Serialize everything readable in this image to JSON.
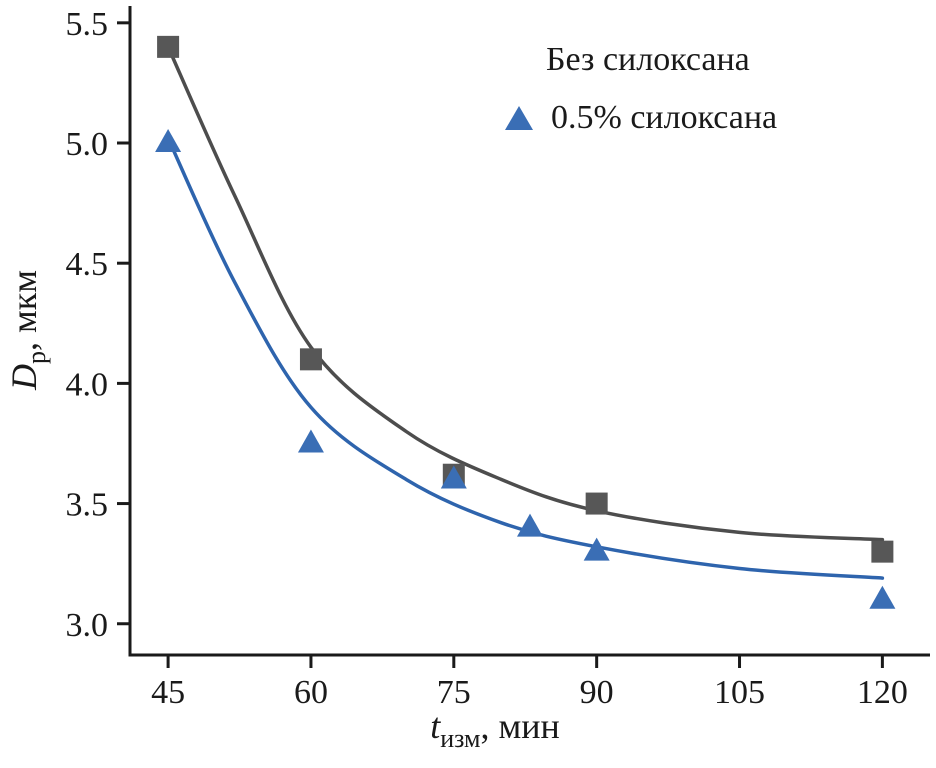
{
  "chart_data": {
    "type": "scatter",
    "title": "",
    "xlabel": "t_изм, мин",
    "ylabel": "D_p, мкм",
    "xlabel_parts": {
      "symbol": "t",
      "subscript": "изм",
      "rest": ", мин"
    },
    "ylabel_parts": {
      "symbol": "D",
      "subscript": "p",
      "rest": ", мкм"
    },
    "xlim": [
      41,
      125
    ],
    "ylim": [
      2.87,
      5.57
    ],
    "xticks": [
      "45",
      "60",
      "75",
      "90",
      "105",
      "120"
    ],
    "yticks": [
      "3.0",
      "3.5",
      "4.0",
      "4.5",
      "5.0",
      "5.5"
    ],
    "xtick_values": [
      45,
      60,
      75,
      90,
      105,
      120
    ],
    "ytick_values": [
      3.0,
      3.5,
      4.0,
      4.5,
      5.0,
      5.5
    ],
    "grid": false,
    "legend_position": "top-right",
    "axis_color": "#1a1a1a",
    "series": [
      {
        "name": "Без силоксана",
        "marker": "square",
        "marker_color": "#575757",
        "line_color": "#4d4d4d",
        "points": [
          [
            45,
            5.4
          ],
          [
            60,
            4.1
          ],
          [
            75,
            3.62
          ],
          [
            90,
            3.5
          ],
          [
            120,
            3.3
          ]
        ],
        "curve": [
          [
            45,
            5.4
          ],
          [
            52,
            4.78
          ],
          [
            60,
            4.15
          ],
          [
            70,
            3.8
          ],
          [
            80,
            3.6
          ],
          [
            90,
            3.47
          ],
          [
            105,
            3.38
          ],
          [
            120,
            3.35
          ]
        ]
      },
      {
        "name": "0.5% силоксана",
        "marker": "triangle",
        "marker_color": "#3a6eb5",
        "line_color": "#2e64ad",
        "points": [
          [
            45,
            5.0
          ],
          [
            60,
            3.75
          ],
          [
            75,
            3.6
          ],
          [
            83,
            3.4
          ],
          [
            90,
            3.3
          ],
          [
            120,
            3.1
          ]
        ],
        "curve": [
          [
            45,
            5.02
          ],
          [
            52,
            4.42
          ],
          [
            60,
            3.9
          ],
          [
            70,
            3.6
          ],
          [
            80,
            3.42
          ],
          [
            90,
            3.32
          ],
          [
            105,
            3.23
          ],
          [
            120,
            3.19
          ]
        ]
      }
    ]
  }
}
